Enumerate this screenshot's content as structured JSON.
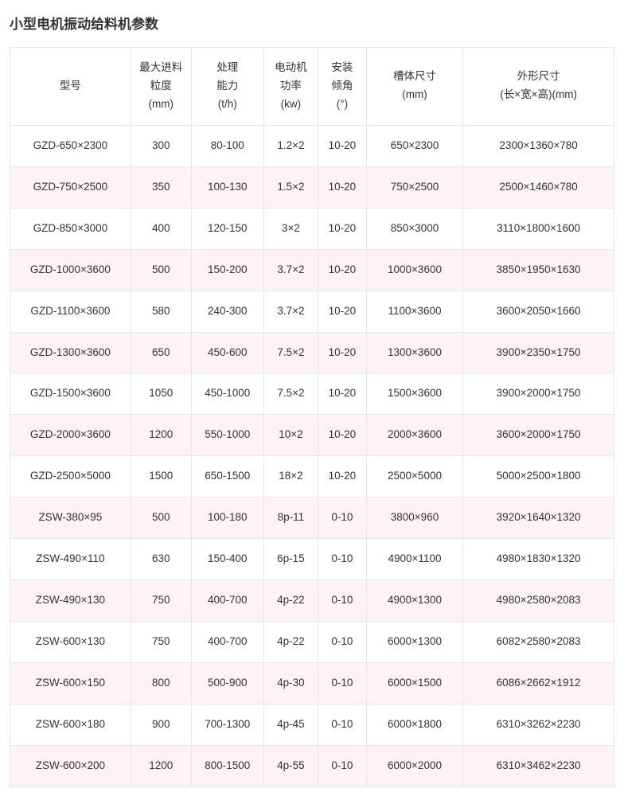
{
  "title": "小型电机振动给料机参数",
  "colors": {
    "border": "#e6e6e6",
    "text": "#333333",
    "alt_row_bg": "#fdf2f5",
    "bg": "#ffffff"
  },
  "table": {
    "columns": [
      {
        "label": "型号",
        "unit": ""
      },
      {
        "label": "最大进料",
        "sub": "粒度",
        "unit": "(mm)"
      },
      {
        "label": "处理",
        "sub": "能力",
        "unit": "(t/h)"
      },
      {
        "label": "电动机",
        "sub": "功率",
        "unit": "(kw)"
      },
      {
        "label": "安装",
        "sub": "倾角",
        "unit": "(°)"
      },
      {
        "label": "槽体尺寸",
        "unit": "(mm)"
      },
      {
        "label": "外形尺寸",
        "unit": "(长×宽×高)(mm)"
      }
    ],
    "rows": [
      [
        "GZD-650×2300",
        "300",
        "80-100",
        "1.2×2",
        "10-20",
        "650×2300",
        "2300×1360×780"
      ],
      [
        "GZD-750×2500",
        "350",
        "100-130",
        "1.5×2",
        "10-20",
        "750×2500",
        "2500×1460×780"
      ],
      [
        "GZD-850×3000",
        "400",
        "120-150",
        "3×2",
        "10-20",
        "850×3000",
        "3110×1800×1600"
      ],
      [
        "GZD-1000×3600",
        "500",
        "150-200",
        "3.7×2",
        "10-20",
        "1000×3600",
        "3850×1950×1630"
      ],
      [
        "GZD-1100×3600",
        "580",
        "240-300",
        "3.7×2",
        "10-20",
        "1100×3600",
        "3600×2050×1660"
      ],
      [
        "GZD-1300×3600",
        "650",
        "450-600",
        "7.5×2",
        "10-20",
        "1300×3600",
        "3900×2350×1750"
      ],
      [
        "GZD-1500×3600",
        "1050",
        "450-1000",
        "7.5×2",
        "10-20",
        "1500×3600",
        "3900×2000×1750"
      ],
      [
        "GZD-2000×3600",
        "1200",
        "550-1000",
        "10×2",
        "10-20",
        "2000×3600",
        "3600×2000×1750"
      ],
      [
        "GZD-2500×5000",
        "1500",
        "650-1500",
        "18×2",
        "10-20",
        "2500×5000",
        "5000×2500×1800"
      ],
      [
        "ZSW-380×95",
        "500",
        "100-180",
        "8p-11",
        "0-10",
        "3800×960",
        "3920×1640×1320"
      ],
      [
        "ZSW-490×110",
        "630",
        "150-400",
        "6p-15",
        "0-10",
        "4900×1100",
        "4980×1830×1320"
      ],
      [
        "ZSW-490×130",
        "750",
        "400-700",
        "4p-22",
        "0-10",
        "4900×1300",
        "4980×2580×2083"
      ],
      [
        "ZSW-600×130",
        "750",
        "400-700",
        "4p-22",
        "0-10",
        "6000×1300",
        "6082×2580×2083"
      ],
      [
        "ZSW-600×150",
        "800",
        "500-900",
        "4p-30",
        "0-10",
        "6000×1500",
        "6086×2662×1912"
      ],
      [
        "ZSW-600×180",
        "900",
        "700-1300",
        "4p-45",
        "0-10",
        "6000×1800",
        "6310×3262×2230"
      ],
      [
        "ZSW-600×200",
        "1200",
        "800-1500",
        "4p-55",
        "0-10",
        "6000×2000",
        "6310×3462×2230"
      ]
    ]
  }
}
